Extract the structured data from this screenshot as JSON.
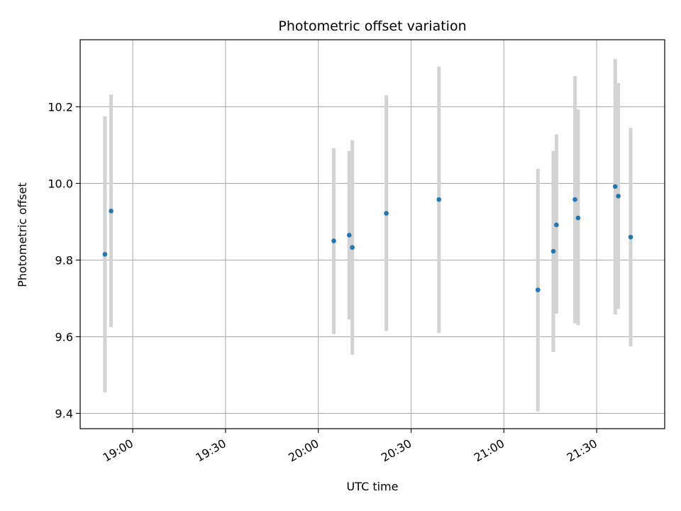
{
  "chart_data": {
    "type": "scatter",
    "title": "Photometric offset variation",
    "xlabel": "UTC time",
    "ylabel": "Photometric offset",
    "x_axis_type": "time",
    "xlim": [
      "18:43",
      "21:52"
    ],
    "ylim": [
      9.36,
      10.375
    ],
    "xticks": [
      "19:00",
      "19:30",
      "20:00",
      "20:30",
      "21:00",
      "21:30"
    ],
    "yticks": [
      9.4,
      9.6,
      9.8,
      10.0,
      10.2
    ],
    "grid": true,
    "marker_color": "#1f77b4",
    "errorbar_color": "#d3d3d3",
    "points": [
      {
        "t": "18:51",
        "y": 9.815,
        "lo": 9.455,
        "hi": 10.175
      },
      {
        "t": "18:53",
        "y": 9.928,
        "lo": 9.625,
        "hi": 10.232
      },
      {
        "t": "20:05",
        "y": 9.85,
        "lo": 9.607,
        "hi": 10.092
      },
      {
        "t": "20:10",
        "y": 9.865,
        "lo": 9.645,
        "hi": 10.085
      },
      {
        "t": "20:11",
        "y": 9.833,
        "lo": 9.553,
        "hi": 10.113
      },
      {
        "t": "20:22",
        "y": 9.922,
        "lo": 9.615,
        "hi": 10.23
      },
      {
        "t": "20:39",
        "y": 9.958,
        "lo": 9.61,
        "hi": 10.305
      },
      {
        "t": "21:11",
        "y": 9.722,
        "lo": 9.405,
        "hi": 10.038
      },
      {
        "t": "21:16",
        "y": 9.823,
        "lo": 9.56,
        "hi": 10.085
      },
      {
        "t": "21:17",
        "y": 9.892,
        "lo": 9.66,
        "hi": 10.128
      },
      {
        "t": "21:23",
        "y": 9.958,
        "lo": 9.635,
        "hi": 10.28
      },
      {
        "t": "21:24",
        "y": 9.91,
        "lo": 9.63,
        "hi": 10.193
      },
      {
        "t": "21:36",
        "y": 9.992,
        "lo": 9.658,
        "hi": 10.325
      },
      {
        "t": "21:37",
        "y": 9.967,
        "lo": 9.672,
        "hi": 10.262
      },
      {
        "t": "21:41",
        "y": 9.86,
        "lo": 9.575,
        "hi": 10.145
      }
    ]
  }
}
